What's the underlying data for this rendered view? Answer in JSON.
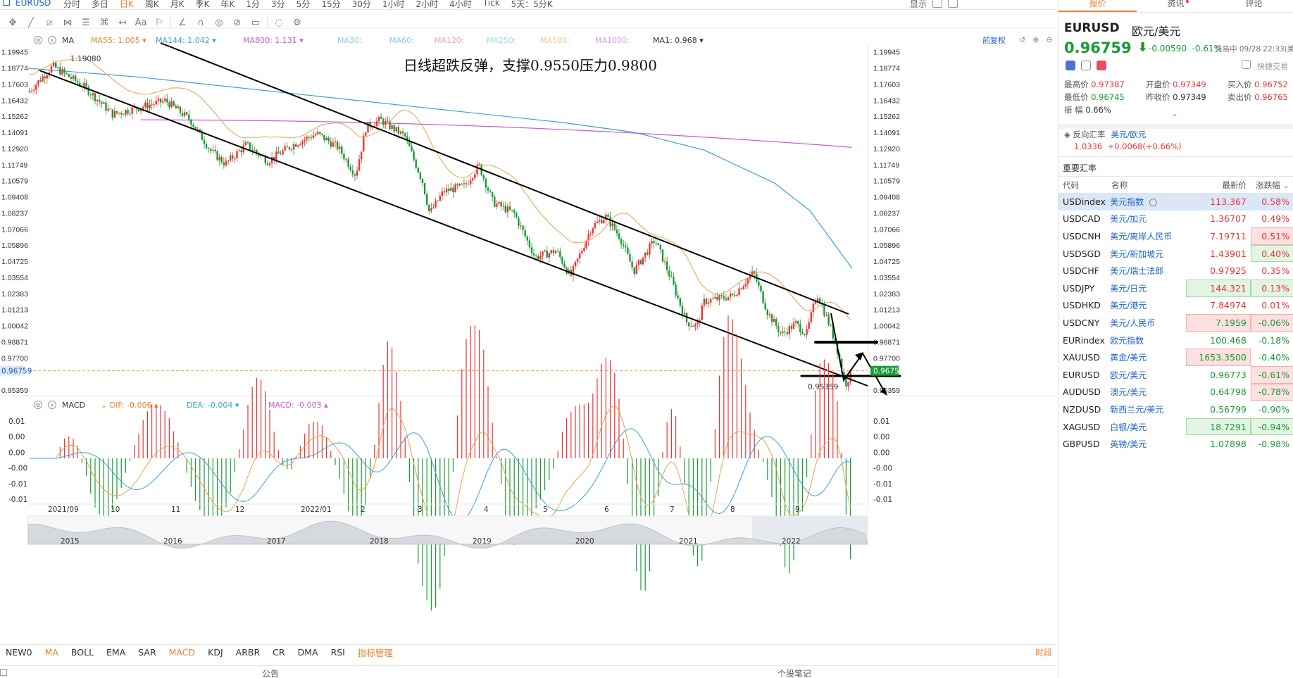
{
  "symbol": "EURUSD",
  "toolbar": {
    "periods": [
      "分时",
      "多日",
      "日K",
      "周K",
      "月K",
      "季K",
      "年K",
      "1分",
      "3分",
      "5分",
      "15分",
      "30分",
      "1小时",
      "2小时",
      "4小时",
      "Tick",
      "5天：5分K"
    ],
    "active_period": "日K",
    "right_items": [
      "显示"
    ]
  },
  "ma_header": {
    "label": "MA",
    "items": [
      {
        "text": "MA55: 1.005",
        "color": "#e8822d"
      },
      {
        "text": "MA144: 1.042",
        "color": "#3aa0d8"
      },
      {
        "text": "MA800: 1.131",
        "color": "#c85ad0"
      },
      {
        "text": "MA30:",
        "color": "#8fc7e8"
      },
      {
        "text": "MA60:",
        "color": "#8fc7e8"
      },
      {
        "text": "MA120:",
        "color": "#f0a0c0"
      },
      {
        "text": "MA250:",
        "color": "#a0d8f0"
      },
      {
        "text": "MA500:",
        "color": "#f0c890"
      },
      {
        "text": "MA1000:",
        "color": "#d0a0e0"
      },
      {
        "text": "MA1: 0.968",
        "color": "#333333"
      }
    ],
    "restore_label": "前复权"
  },
  "macd_header": {
    "label": "MACD",
    "items": [
      {
        "text": "DIF: -0.006",
        "color": "#e8822d"
      },
      {
        "text": "DEA: -0.004",
        "color": "#3aa0d8"
      },
      {
        "text": "MACD: -0.003",
        "color": "#c85ad0"
      }
    ]
  },
  "annotation": "日线超跌反弹，支撑0.9550压力0.9800",
  "chart_data": {
    "type": "candlestick",
    "title": "",
    "price_axis_ticks": [
      "1.19945",
      "1.18774",
      "1.17603",
      "1.16432",
      "1.15262",
      "1.14091",
      "1.12920",
      "1.11749",
      "1.10579",
      "1.09408",
      "1.08237",
      "1.07066",
      "1.05896",
      "1.04725",
      "1.03554",
      "1.02383",
      "1.01213",
      "1.00042",
      "0.98871",
      "0.97700",
      "0.96759",
      "0.95359"
    ],
    "ylim": [
      0.9495,
      1.2054
    ],
    "current_price": 0.96759,
    "high_label": "1.19080",
    "low_label": "0.95359",
    "time_axis_labels": [
      "2021/09",
      "10",
      "11",
      "12",
      "2022/01",
      "2",
      "3",
      "4",
      "5",
      "6",
      "7",
      "8",
      "9"
    ],
    "overview_years": [
      "2015",
      "2016",
      "2017",
      "2018",
      "2019",
      "2020",
      "2021",
      "2022"
    ],
    "macd_axis_ticks": [
      "0.01",
      "0.00",
      "0.00",
      "-0.00",
      "-0.01",
      "-0.01"
    ],
    "macd_ylim": [
      -0.0105,
      0.0105
    ],
    "approx_monthly_close": [
      {
        "month": "2021/09",
        "close": 1.16
      },
      {
        "month": "2021/10",
        "close": 1.156
      },
      {
        "month": "2021/11",
        "close": 1.132
      },
      {
        "month": "2021/12",
        "close": 1.137
      },
      {
        "month": "2022/01",
        "close": 1.123
      },
      {
        "month": "2022/02",
        "close": 1.122
      },
      {
        "month": "2022/03",
        "close": 1.107
      },
      {
        "month": "2022/04",
        "close": 1.054
      },
      {
        "month": "2022/05",
        "close": 1.073
      },
      {
        "month": "2022/06",
        "close": 1.048
      },
      {
        "month": "2022/07",
        "close": 1.022
      },
      {
        "month": "2022/08",
        "close": 1.005
      },
      {
        "month": "2022/09",
        "close": 0.968
      }
    ],
    "series": [
      {
        "name": "MA55",
        "value": 1.005
      },
      {
        "name": "MA144",
        "value": 1.042
      },
      {
        "name": "MA800",
        "value": 1.131
      },
      {
        "name": "MA1",
        "value": 0.968
      }
    ],
    "trend_channel": {
      "resistance": 0.98,
      "support": 0.955
    }
  },
  "indicator_tabs": [
    "NEW0",
    "MA",
    "BOLL",
    "EMA",
    "SAR",
    "MACD",
    "KDJ",
    "ARBR",
    "CR",
    "DMA",
    "RSI",
    "指标管理"
  ],
  "indicator_tabs_orange": [
    "MA",
    "MACD",
    "指标管理"
  ],
  "timeshare_label": "时段",
  "footer": {
    "left": "公告",
    "right": "个股笔记"
  },
  "right_panel": {
    "tabs": [
      "报价",
      "资讯",
      "评论"
    ],
    "symbol": "EURUSD",
    "symbol_name": "欧元/美元",
    "price": "0.96759",
    "change": "-0.00590",
    "change_pct": "-0.61%",
    "status_time": "交易中 09/28 22:33(美东",
    "quick_trade": "快捷交易",
    "quote_rows": [
      [
        {
          "label": "最高价",
          "value": "0.97387",
          "cls": "red"
        },
        {
          "label": "开盘价",
          "value": "0.97349",
          "cls": "red"
        },
        {
          "label": "买入价",
          "value": "0.96752",
          "cls": "red"
        }
      ],
      [
        {
          "label": "最低价",
          "value": "0.96745",
          "cls": "green"
        },
        {
          "label": "昨收价",
          "value": "0.97349",
          "cls": ""
        },
        {
          "label": "卖出价",
          "value": "0.96765",
          "cls": "red"
        }
      ],
      [
        {
          "label": "振  幅",
          "value": "0.66%",
          "cls": ""
        }
      ]
    ],
    "inverse_label": "反向汇率",
    "inverse_pair": "美元/欧元",
    "inverse_price": "1.0336",
    "inverse_change": "+0.0068(+0.66%)",
    "section_title": "重要汇率",
    "table_headers": [
      "代码",
      "名称",
      "最新价",
      "涨跌幅"
    ],
    "rows": [
      {
        "code": "USDindex",
        "name": "美元指数",
        "price": "113.367",
        "chg": "0.58%",
        "dir": "up",
        "sel": true,
        "box": ""
      },
      {
        "code": "USDCAD",
        "name": "美元/加元",
        "price": "1.36707",
        "chg": "0.49%",
        "dir": "up",
        "sel": false,
        "box": ""
      },
      {
        "code": "USDCNH",
        "name": "美元/离岸人民币",
        "price": "7.19711",
        "chg": "0.51%",
        "dir": "up",
        "sel": false,
        "box": "chg-up"
      },
      {
        "code": "USDSGD",
        "name": "美元/新加坡元",
        "price": "1.43901",
        "chg": "0.40%",
        "dir": "up",
        "sel": false,
        "box": "chg-dn"
      },
      {
        "code": "USDCHF",
        "name": "美元/瑞士法郎",
        "price": "0.97925",
        "chg": "0.35%",
        "dir": "up",
        "sel": false,
        "box": ""
      },
      {
        "code": "USDJPY",
        "name": "美元/日元",
        "price": "144.321",
        "chg": "0.13%",
        "dir": "up",
        "sel": false,
        "box": "both-dn"
      },
      {
        "code": "USDHKD",
        "name": "美元/港元",
        "price": "7.84974",
        "chg": "0.01%",
        "dir": "up",
        "sel": false,
        "box": ""
      },
      {
        "code": "USDCNY",
        "name": "美元/人民币",
        "price": "7.1959",
        "chg": "-0.06%",
        "dir": "dn",
        "sel": false,
        "box": "both-up"
      },
      {
        "code": "EURindex",
        "name": "欧元指数",
        "price": "100.468",
        "chg": "-0.18%",
        "dir": "dn",
        "sel": false,
        "box": ""
      },
      {
        "code": "XAUUSD",
        "name": "黄金/美元",
        "price": "1653.3500",
        "chg": "-0.40%",
        "dir": "dn",
        "sel": false,
        "box": "price-up"
      },
      {
        "code": "EURUSD",
        "name": "欧元/美元",
        "price": "0.96773",
        "chg": "-0.61%",
        "dir": "dn",
        "sel": false,
        "box": "chg-up"
      },
      {
        "code": "AUDUSD",
        "name": "澳元/美元",
        "price": "0.64798",
        "chg": "-0.78%",
        "dir": "dn",
        "sel": false,
        "box": "chg-up"
      },
      {
        "code": "NZDUSD",
        "name": "新西兰元/美元",
        "price": "0.56799",
        "chg": "-0.90%",
        "dir": "dn",
        "sel": false,
        "box": ""
      },
      {
        "code": "XAGUSD",
        "name": "白银/美元",
        "price": "18.7291",
        "chg": "-0.94%",
        "dir": "dn",
        "sel": false,
        "box": "both-dn"
      },
      {
        "code": "GBPUSD",
        "name": "英镑/美元",
        "price": "1.07898",
        "chg": "-0.98%",
        "dir": "dn",
        "sel": false,
        "box": ""
      }
    ]
  }
}
